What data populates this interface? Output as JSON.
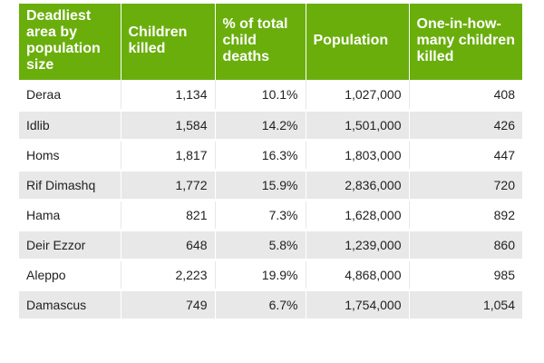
{
  "table": {
    "headers": [
      "Deadliest area by population size",
      "Children killed",
      "% of total child deaths",
      "Population",
      "One-in-how-many children killed"
    ],
    "rows": [
      [
        "Deraa",
        "1,134",
        "10.1%",
        "1,027,000",
        "408"
      ],
      [
        "Idlib",
        "1,584",
        "14.2%",
        "1,501,000",
        "426"
      ],
      [
        "Homs",
        "1,817",
        "16.3%",
        "1,803,000",
        "447"
      ],
      [
        "Rif Dimashq",
        "1,772",
        "15.9%",
        "2,836,000",
        "720"
      ],
      [
        "Hama",
        "821",
        "7.3%",
        "1,628,000",
        "892"
      ],
      [
        "Deir Ezzor",
        "648",
        "5.8%",
        "1,239,000",
        "860"
      ],
      [
        "Aleppo",
        "2,223",
        "19.9%",
        "4,868,000",
        "985"
      ],
      [
        "Damascus",
        "749",
        "6.7%",
        "1,754,000",
        "1,054"
      ]
    ],
    "colors": {
      "header_bg": "#6aae0c",
      "header_text": "#ffffff",
      "row_alt_bg": "#e8e8e8"
    }
  }
}
